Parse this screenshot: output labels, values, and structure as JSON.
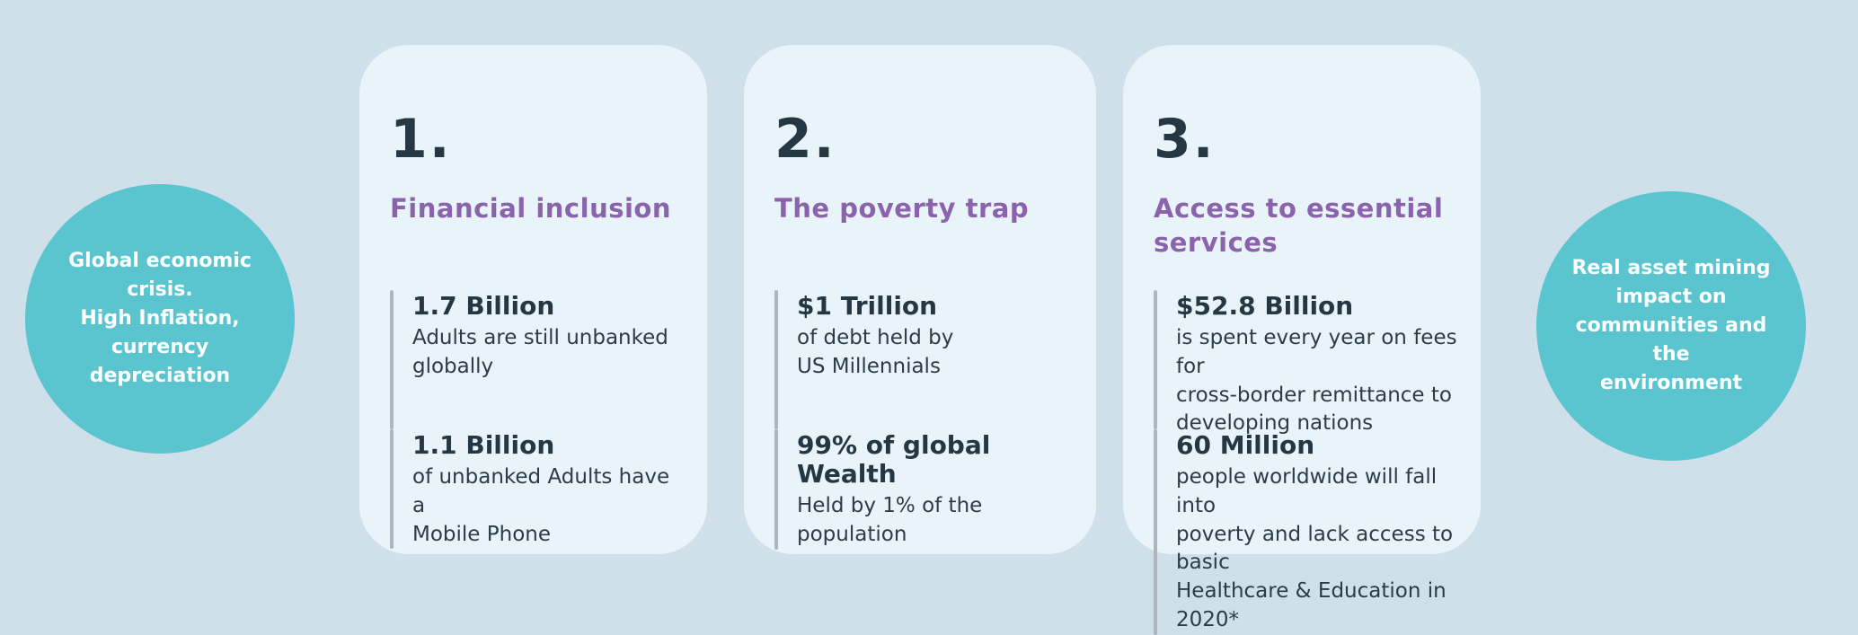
{
  "colors": {
    "background": "#d0e0eb",
    "card_background": "#e9f4fa",
    "circle_teal": "#5ac5ce",
    "heading_purple": "#8a63ac",
    "text_dark": "#253742",
    "accent_bar_gray": "#aeb6bc",
    "circle_text_white": "#ffffff"
  },
  "left_circle": {
    "text": "Global economic\ncrisis.\nHigh Inflation,\ncurrency\ndepreciation"
  },
  "right_circle": {
    "text": "Real asset  mining\nimpact on\ncommunities and the\nenvironment"
  },
  "cards": [
    {
      "number": "1.",
      "title": "Financial inclusion",
      "stats": [
        {
          "value": "1.7 Billion",
          "description": "Adults are still unbanked\nglobally"
        },
        {
          "value": "1.1 Billion",
          "description": "of unbanked Adults have a\nMobile Phone"
        }
      ]
    },
    {
      "number": "2.",
      "title": "The poverty trap",
      "stats": [
        {
          "value": "$1 Trillion",
          "description": "of debt held by\nUS Millennials"
        },
        {
          "value": "99% of global Wealth",
          "description": "Held by 1% of the\npopulation"
        }
      ]
    },
    {
      "number": "3.",
      "title": "Access to essential\nservices",
      "stats": [
        {
          "value": "$52.8 Billion",
          "description": "is spent every year on fees for\ncross-border remittance to\ndeveloping nations"
        },
        {
          "value": "60 Million",
          "description": "people worldwide will fall into\npoverty and lack access to basic\nHealthcare & Education in 2020*"
        }
      ]
    }
  ]
}
